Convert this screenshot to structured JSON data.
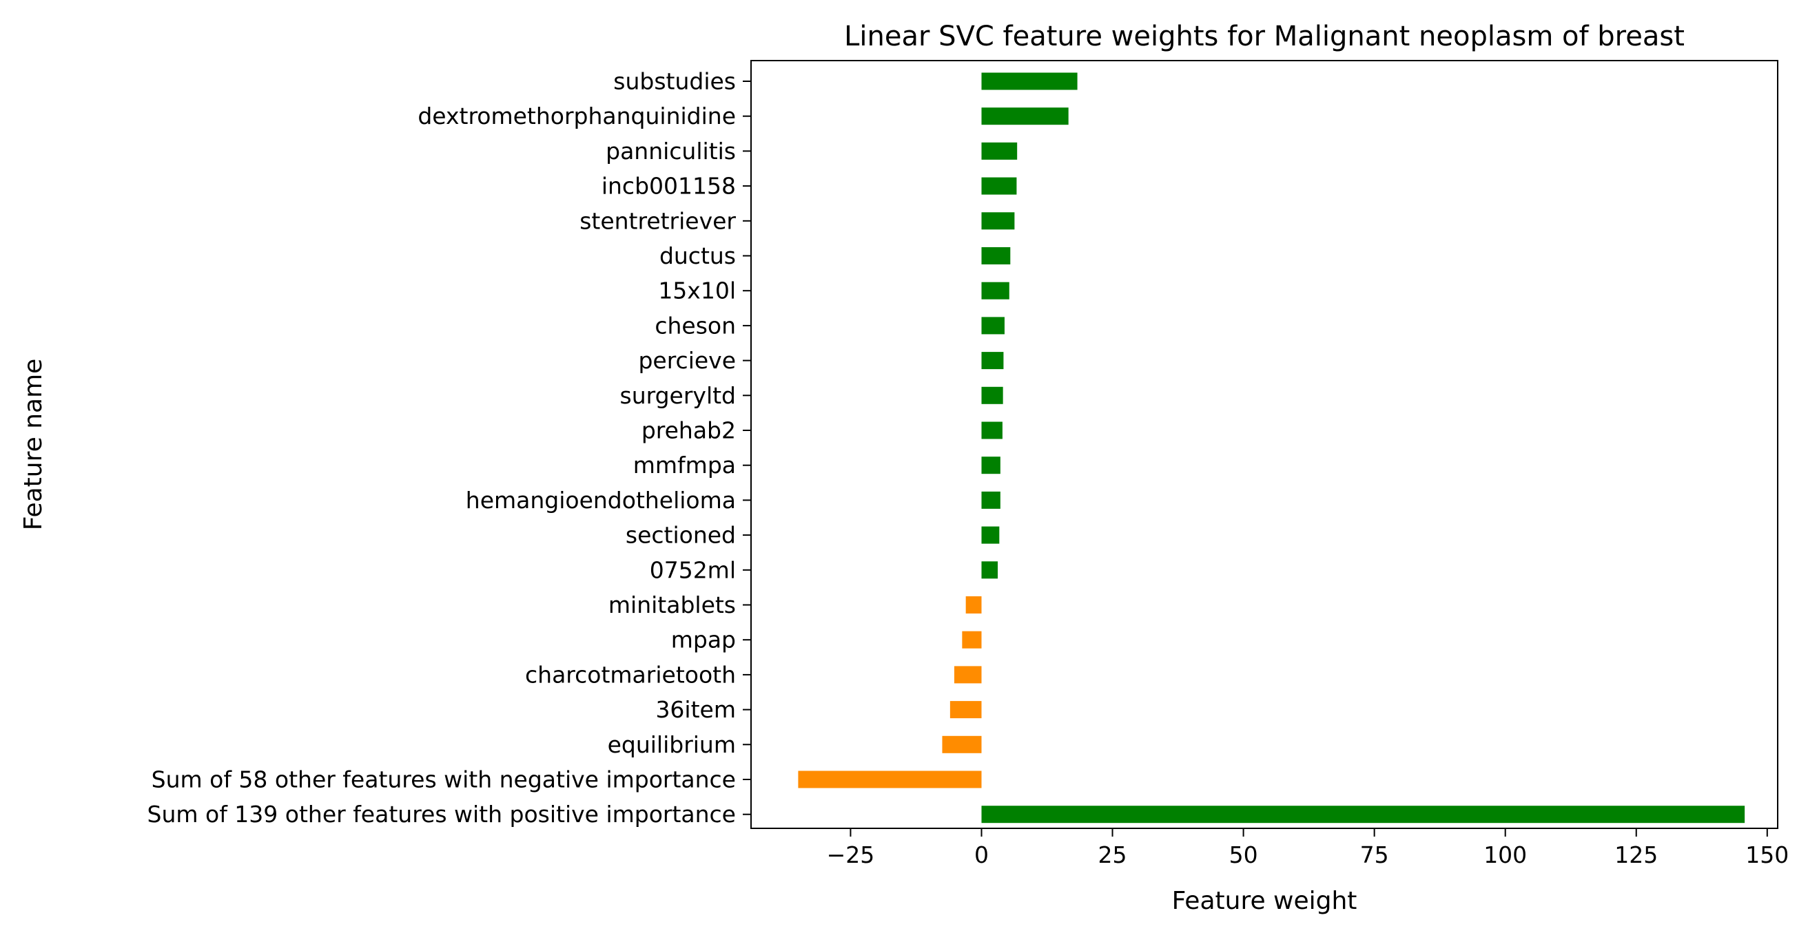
{
  "chart_data": {
    "type": "bar",
    "orientation": "horizontal",
    "title": "Linear SVC feature weights for Malignant neoplasm of breast",
    "xlabel": "Feature weight",
    "ylabel": "Feature name",
    "xlim": [
      -44,
      152
    ],
    "xticks": [
      -25,
      0,
      25,
      50,
      75,
      100,
      125,
      150
    ],
    "xtick_labels": [
      "−25",
      "0",
      "25",
      "50",
      "75",
      "100",
      "125",
      "150"
    ],
    "grid": false,
    "legend": "none",
    "colors": {
      "positive": "#008000",
      "negative": "#ff8c00"
    },
    "categories": [
      "substudies",
      "dextromethorphanquinidine",
      "panniculitis",
      "incb001158",
      "stentretriever",
      "ductus",
      "15x10l",
      "cheson",
      "percieve",
      "surgeryltd",
      "prehab2",
      "mmfmpa",
      "hemangioendothelioma",
      "sectioned",
      "0752ml",
      "minitablets",
      "mpap",
      "charcotmarietooth",
      "36item",
      "equilibrium",
      "Sum of 58 other features with negative importance",
      "Sum of 139 other features with positive importance"
    ],
    "values": [
      18.3,
      16.6,
      6.8,
      6.7,
      6.3,
      5.5,
      5.3,
      4.4,
      4.2,
      4.1,
      4.0,
      3.6,
      3.6,
      3.4,
      3.1,
      -3.0,
      -3.7,
      -5.2,
      -6.0,
      -7.5,
      -35.0,
      145.7
    ]
  }
}
